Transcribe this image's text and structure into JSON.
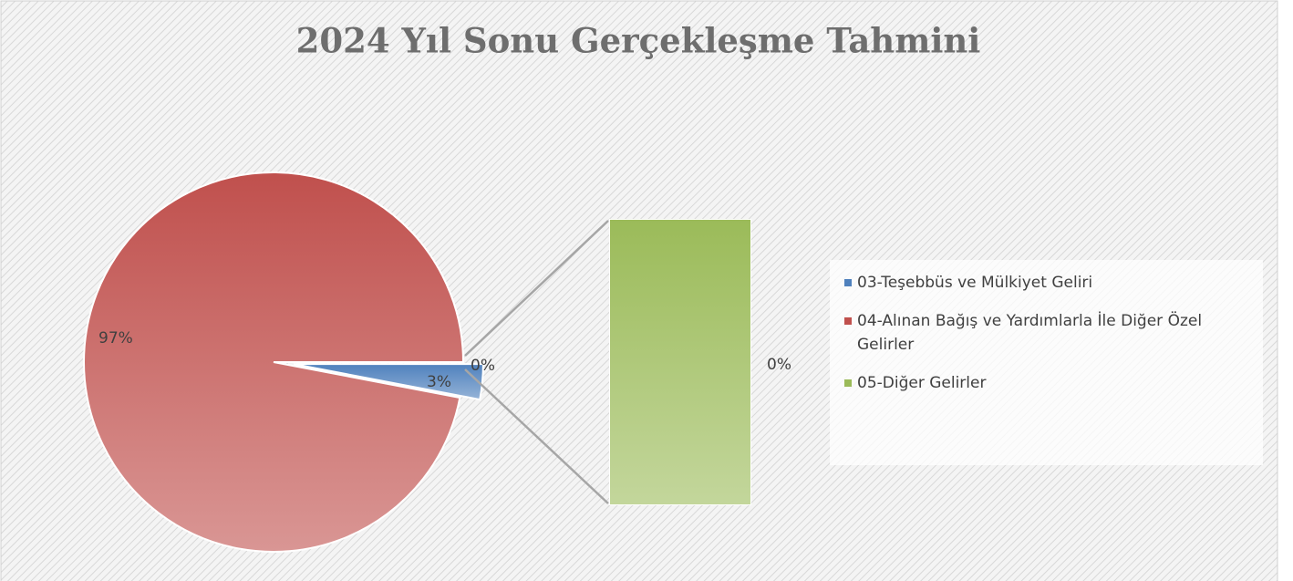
{
  "chart_data": {
    "type": "pie-of-bar",
    "title": "2024 Yıl Sonu Gerçekleşme Tahmini",
    "categories": [
      "03-Teşebbüs ve Mülkiyet Geliri",
      "04-Alınan Bağış ve Yardımlarla İle Diğer Özel Gelirler",
      "05-Diğer Gelirler"
    ],
    "values": [
      3,
      97,
      0
    ],
    "value_labels": [
      "3%",
      "97%",
      "0%"
    ],
    "colors": [
      "#4f81bd",
      "#c0504d",
      "#9bbb59"
    ]
  }
}
